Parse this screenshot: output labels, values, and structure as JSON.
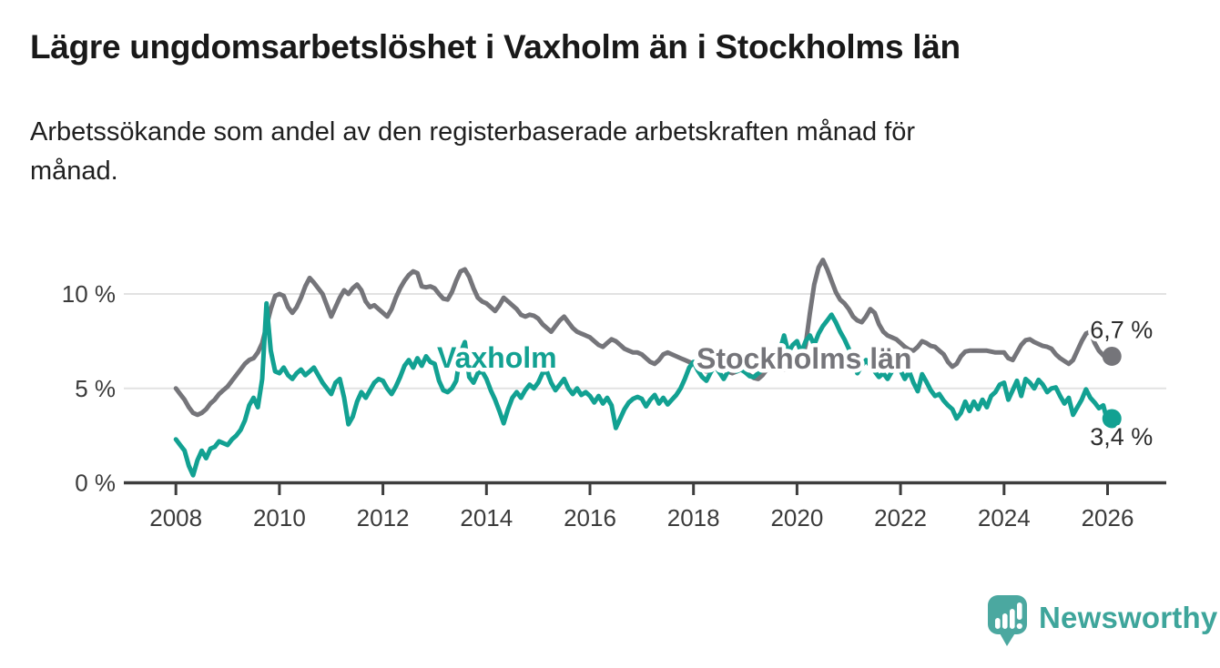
{
  "page": {
    "background": "#ffffff"
  },
  "header": {
    "title": "Lägre ungdomsarbetslöshet i Vaxholm än i Stockholms län",
    "subtitle": "Arbetssökande som andel av den registerbaserade arbetskraften månad för\nmånad."
  },
  "brand": {
    "name": "Newsworthy",
    "icon": "speech-bubble-bar-chart",
    "icon_color": "#4BA8A0",
    "text_color": "#3EA59B"
  },
  "style": {
    "grid_color": "#E2E2E2",
    "axis_color": "#3D3D3D",
    "tick_label_color": "#3B3B3B",
    "end_label_color": "#2D2D2D"
  },
  "chart_data": {
    "type": "line",
    "title": "Lägre ungdomsarbetslöshet i Vaxholm än i Stockholms län",
    "subtitle": "Arbetssökande som andel av den registerbaserade arbetskraften månad för månad.",
    "frequency": "monthly",
    "start": "2008-01",
    "end": "2026-02",
    "unit": "%",
    "grid": "horizontal",
    "legend": "inline-labels",
    "x_axis": {
      "ticks": [
        2008,
        2010,
        2012,
        2014,
        2016,
        2018,
        2020,
        2022,
        2024,
        2026
      ],
      "tick_labels": [
        "2008",
        "2010",
        "2012",
        "2014",
        "2016",
        "2018",
        "2020",
        "2022",
        "2024",
        "2026"
      ]
    },
    "y_axis": {
      "ticks": [
        0,
        5,
        10
      ],
      "tick_labels": [
        "0 %",
        "5 %",
        "10 %"
      ],
      "range": [
        0,
        12.3
      ]
    },
    "series": [
      {
        "name": "Stockholms län",
        "color": "#75757A",
        "end_label": "6,7 %",
        "end_value": 6.7,
        "end_label_position": "above",
        "values": [
          5.0,
          4.7,
          4.4,
          4.0,
          3.7,
          3.6,
          3.7,
          3.9,
          4.2,
          4.4,
          4.7,
          4.9,
          5.1,
          5.4,
          5.7,
          6.0,
          6.3,
          6.5,
          6.6,
          6.9,
          7.4,
          8.3,
          9.2,
          9.9,
          10.0,
          9.9,
          9.3,
          9.0,
          9.3,
          9.8,
          10.4,
          10.85,
          10.6,
          10.3,
          10.0,
          9.4,
          8.8,
          9.3,
          9.8,
          10.2,
          10.0,
          10.3,
          10.5,
          10.2,
          9.6,
          9.3,
          9.4,
          9.2,
          9.0,
          8.8,
          9.2,
          9.8,
          10.3,
          10.7,
          11.0,
          11.2,
          11.1,
          10.4,
          10.35,
          10.4,
          10.3,
          10.0,
          9.75,
          9.7,
          10.1,
          10.7,
          11.2,
          11.3,
          10.9,
          10.3,
          9.8,
          9.6,
          9.5,
          9.3,
          9.1,
          9.4,
          9.8,
          9.6,
          9.4,
          9.2,
          8.9,
          8.8,
          8.9,
          8.85,
          8.7,
          8.4,
          8.2,
          8.0,
          8.3,
          8.6,
          8.8,
          8.5,
          8.2,
          8.0,
          7.9,
          7.8,
          7.7,
          7.5,
          7.3,
          7.2,
          7.4,
          7.6,
          7.5,
          7.3,
          7.1,
          7.0,
          6.9,
          6.9,
          6.8,
          6.6,
          6.4,
          6.3,
          6.5,
          6.8,
          6.9,
          6.8,
          6.7,
          6.6,
          6.5,
          6.4,
          6.3,
          6.1,
          6.0,
          5.9,
          6.0,
          6.2,
          6.2,
          6.0,
          5.9,
          5.8,
          5.9,
          6.0,
          5.9,
          5.7,
          5.55,
          5.5,
          5.7,
          6.0,
          6.1,
          6.0,
          5.95,
          6.0,
          6.1,
          6.2,
          6.3,
          6.4,
          7.3,
          9.0,
          10.5,
          11.4,
          11.8,
          11.3,
          10.7,
          10.1,
          9.7,
          9.5,
          9.2,
          8.8,
          8.6,
          8.5,
          8.8,
          9.2,
          9.0,
          8.4,
          8.0,
          7.8,
          7.7,
          7.6,
          7.4,
          7.2,
          7.05,
          7.0,
          7.2,
          7.5,
          7.4,
          7.25,
          7.2,
          7.0,
          6.8,
          6.4,
          6.15,
          6.3,
          6.7,
          6.95,
          7.0,
          7.0,
          7.0,
          7.0,
          7.0,
          6.95,
          6.9,
          6.9,
          6.9,
          6.6,
          6.5,
          6.9,
          7.3,
          7.55,
          7.6,
          7.45,
          7.35,
          7.25,
          7.2,
          7.1,
          6.8,
          6.6,
          6.45,
          6.3,
          6.5,
          7.0,
          7.5,
          7.9,
          8.0,
          7.4,
          7.0,
          6.75,
          6.6,
          6.7
        ]
      },
      {
        "name": "Vaxholm",
        "color": "#12A192",
        "end_label": "3,4 %",
        "end_value": 3.4,
        "end_label_position": "below",
        "values": [
          2.3,
          2.0,
          1.7,
          0.9,
          0.4,
          1.2,
          1.7,
          1.3,
          1.8,
          1.9,
          2.2,
          2.1,
          2.0,
          2.3,
          2.5,
          2.8,
          3.3,
          4.1,
          4.5,
          4.0,
          5.5,
          9.5,
          7.0,
          5.9,
          5.8,
          6.1,
          5.7,
          5.5,
          5.8,
          6.0,
          5.7,
          5.9,
          6.1,
          5.7,
          5.3,
          5.0,
          4.7,
          5.3,
          5.5,
          4.5,
          3.1,
          3.5,
          4.3,
          4.8,
          4.5,
          4.9,
          5.3,
          5.5,
          5.4,
          5.0,
          4.7,
          5.1,
          5.6,
          6.2,
          6.5,
          6.1,
          6.6,
          6.2,
          6.7,
          6.4,
          6.3,
          5.4,
          4.9,
          4.8,
          5.0,
          5.4,
          6.9,
          7.45,
          5.6,
          5.3,
          5.8,
          5.9,
          5.5,
          4.9,
          4.4,
          3.8,
          3.15,
          3.9,
          4.5,
          4.8,
          4.5,
          4.9,
          5.2,
          5.0,
          5.3,
          5.8,
          5.9,
          5.3,
          4.9,
          5.2,
          5.5,
          5.0,
          4.7,
          5.0,
          4.65,
          4.8,
          4.6,
          4.25,
          4.6,
          4.2,
          4.5,
          4.1,
          2.9,
          3.4,
          3.9,
          4.25,
          4.45,
          4.55,
          4.45,
          4.05,
          4.4,
          4.65,
          4.2,
          4.5,
          4.15,
          4.4,
          4.65,
          5.0,
          5.5,
          6.1,
          6.4,
          5.95,
          5.6,
          5.4,
          5.85,
          6.2,
          5.85,
          5.5,
          5.9,
          6.1,
          5.9,
          6.0,
          5.85,
          5.65,
          5.6,
          5.8,
          6.0,
          6.2,
          6.05,
          6.45,
          7.0,
          7.8,
          6.9,
          7.3,
          7.5,
          6.9,
          7.5,
          7.8,
          7.3,
          7.9,
          8.3,
          8.6,
          8.9,
          8.5,
          8.0,
          7.6,
          7.1,
          6.4,
          5.8,
          6.2,
          6.5,
          6.2,
          5.9,
          5.6,
          5.8,
          5.5,
          5.9,
          6.1,
          5.95,
          5.5,
          5.9,
          5.3,
          4.85,
          5.75,
          5.35,
          4.9,
          4.6,
          4.7,
          4.35,
          4.1,
          3.9,
          3.4,
          3.7,
          4.3,
          3.8,
          4.3,
          3.9,
          4.4,
          4.0,
          4.6,
          4.8,
          5.2,
          5.3,
          4.4,
          4.9,
          5.4,
          4.6,
          5.5,
          5.3,
          5.0,
          5.45,
          5.2,
          4.8,
          5.0,
          5.05,
          4.6,
          4.2,
          4.5,
          3.6,
          4.0,
          4.4,
          4.95,
          4.5,
          4.25,
          3.95,
          4.1,
          3.25,
          3.4
        ]
      }
    ]
  }
}
